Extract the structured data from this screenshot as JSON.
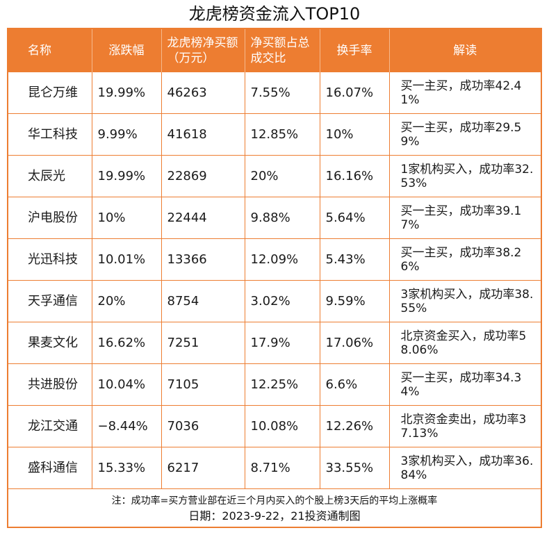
{
  "title": "龙虎榜资金流入TOP10",
  "table": {
    "headers": {
      "name": "名称",
      "change": "涨跌幅",
      "net_buy": "龙虎榜净买额（万元）",
      "ratio": "净买额占总成交比",
      "turnover": "换手率",
      "desc": "解读"
    },
    "rows": [
      {
        "name": "昆仑万维",
        "change": "19.99%",
        "net_buy": "46263",
        "ratio": "7.55%",
        "turnover": "16.07%",
        "desc": "买一主买，成功率42.41%"
      },
      {
        "name": "华工科技",
        "change": "9.99%",
        "net_buy": "41618",
        "ratio": "12.85%",
        "turnover": "10%",
        "desc": "买一主买，成功率29.59%"
      },
      {
        "name": "太辰光",
        "change": "19.99%",
        "net_buy": "22869",
        "ratio": "20%",
        "turnover": "16.16%",
        "desc": "1家机构买入，成功率32.53%"
      },
      {
        "name": "沪电股份",
        "change": "10%",
        "net_buy": "22444",
        "ratio": "9.88%",
        "turnover": "5.64%",
        "desc": "买一主买，成功率39.17%"
      },
      {
        "name": "光迅科技",
        "change": "10.01%",
        "net_buy": "13366",
        "ratio": "12.09%",
        "turnover": "5.43%",
        "desc": "买一主买，成功率38.26%"
      },
      {
        "name": "天孚通信",
        "change": "20%",
        "net_buy": "8754",
        "ratio": "3.02%",
        "turnover": "9.59%",
        "desc": "3家机构买入，成功率38.55%"
      },
      {
        "name": "果麦文化",
        "change": "16.62%",
        "net_buy": "7251",
        "ratio": "17.9%",
        "turnover": "17.06%",
        "desc": "北京资金买入，成功率58.06%"
      },
      {
        "name": "共进股份",
        "change": "10.04%",
        "net_buy": "7105",
        "ratio": "12.25%",
        "turnover": "6.6%",
        "desc": "买一主买，成功率34.34%"
      },
      {
        "name": "龙江交通",
        "change": "−8.44%",
        "net_buy": "7036",
        "ratio": "10.08%",
        "turnover": "12.26%",
        "desc": "北京资金卖出，成功率37.13%"
      },
      {
        "name": "盛科通信",
        "change": "15.33%",
        "net_buy": "6217",
        "ratio": "8.71%",
        "turnover": "33.55%",
        "desc": "3家机构买入，成功率36.84%"
      }
    ]
  },
  "footer": {
    "note": "注：成功率=买方营业部在近三个月内买入的个股上榜3天后的平均上涨概率",
    "date": "日期：2023-9-22，21投资通制图"
  },
  "colors": {
    "accent": "#ed7d31",
    "header_text": "#ffffff"
  }
}
